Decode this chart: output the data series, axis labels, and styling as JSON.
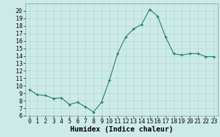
{
  "x": [
    0,
    1,
    2,
    3,
    4,
    5,
    6,
    7,
    8,
    9,
    10,
    11,
    12,
    13,
    14,
    15,
    16,
    17,
    18,
    19,
    20,
    21,
    22,
    23
  ],
  "y": [
    9.5,
    8.8,
    8.7,
    8.3,
    8.4,
    7.5,
    7.8,
    7.2,
    6.5,
    7.8,
    10.8,
    14.3,
    16.5,
    17.6,
    18.2,
    20.2,
    19.3,
    16.5,
    14.3,
    14.1,
    14.3,
    14.3,
    13.9,
    13.9
  ],
  "xlabel": "Humidex (Indice chaleur)",
  "xlim": [
    -0.5,
    23.5
  ],
  "ylim": [
    6,
    21
  ],
  "yticks": [
    6,
    7,
    8,
    9,
    10,
    11,
    12,
    13,
    14,
    15,
    16,
    17,
    18,
    19,
    20
  ],
  "xticks": [
    0,
    1,
    2,
    3,
    4,
    5,
    6,
    7,
    8,
    9,
    10,
    11,
    12,
    13,
    14,
    15,
    16,
    17,
    18,
    19,
    20,
    21,
    22,
    23
  ],
  "line_color": "#1a7a5e",
  "bg_color": "#cceae8",
  "grid_color": "#b0d8d4",
  "xlabel_fontsize": 7.5,
  "tick_fontsize": 6.0
}
